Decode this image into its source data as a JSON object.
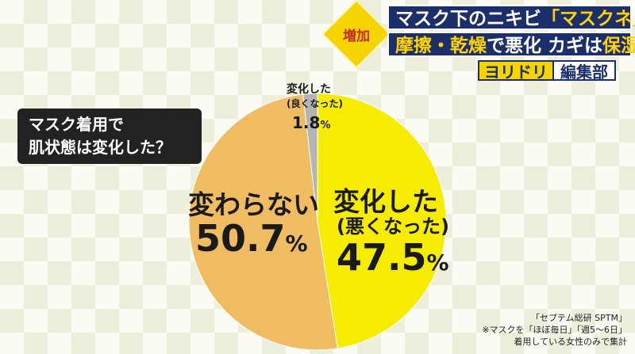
{
  "banner": {
    "badge": "増加",
    "line1_a": "マスク下のニキビ",
    "line1_b": "「マスクネ」",
    "line2_a": "摩擦・乾燥",
    "line2_b": "で悪化 カギは",
    "line2_c": "保湿",
    "tag_yellow": "ヨリドリ",
    "tag_white": "編集部"
  },
  "question": {
    "line1": "マスク着用で",
    "line2": "肌状態は変化した？"
  },
  "chart_data": {
    "type": "pie",
    "title": "マスク着用で肌状態は変化した？",
    "slices": [
      {
        "label": "変化した",
        "sublabel": "(悪くなった)",
        "value": 47.5,
        "value_text": "47.5",
        "color": "#f5ec00"
      },
      {
        "label": "変わらない",
        "sublabel": "",
        "value": 50.7,
        "value_text": "50.7",
        "color": "#efbc62"
      },
      {
        "label": "変化した",
        "sublabel": "(良くなった)",
        "value": 1.8,
        "value_text": "1.8",
        "color": "#b4b4b4"
      }
    ],
    "unit": "%",
    "start": "top",
    "direction": "clockwise"
  },
  "notes": {
    "source": "「セプテム総研 SPTM」",
    "note1": "※マスクを「ほぼ毎日」「週5〜6日」",
    "note2": "着用している女性のみで集計"
  }
}
